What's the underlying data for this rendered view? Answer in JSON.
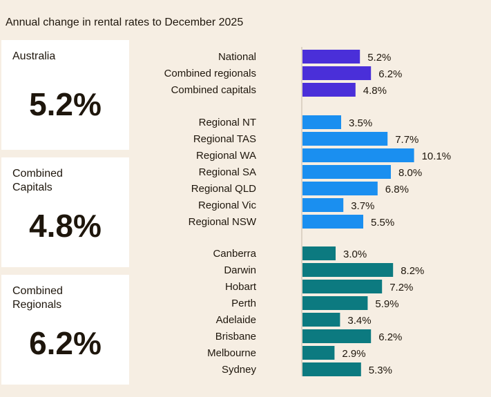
{
  "title": "Annual change in rental rates to December 2025",
  "cards": [
    {
      "label": "Australia",
      "value": "5.2%"
    },
    {
      "label": "Combined Capitals",
      "value": "4.8%"
    },
    {
      "label": "Combined Regionals",
      "value": "6.2%"
    }
  ],
  "chart_data": {
    "type": "bar",
    "orientation": "horizontal",
    "unit": "%",
    "title": "Annual change in rental rates to December 2025",
    "groups": [
      {
        "color": "#4a2fd9",
        "categories": [
          "National",
          "Combined regionals",
          "Combined capitals"
        ],
        "values": [
          5.2,
          6.2,
          4.8
        ]
      },
      {
        "color": "#1a8ff0",
        "categories": [
          "Regional NT",
          "Regional TAS",
          "Regional WA",
          "Regional SA",
          "Regional QLD",
          "Regional Vic",
          "Regional NSW"
        ],
        "values": [
          3.5,
          7.7,
          10.1,
          8.0,
          6.8,
          3.7,
          5.5
        ]
      },
      {
        "color": "#0c7a80",
        "categories": [
          "Canberra",
          "Darwin",
          "Hobart",
          "Perth",
          "Adelaide",
          "Brisbane",
          "Melbourne",
          "Sydney"
        ],
        "values": [
          3.0,
          8.2,
          7.2,
          5.9,
          3.4,
          6.2,
          2.9,
          5.3
        ]
      }
    ]
  }
}
